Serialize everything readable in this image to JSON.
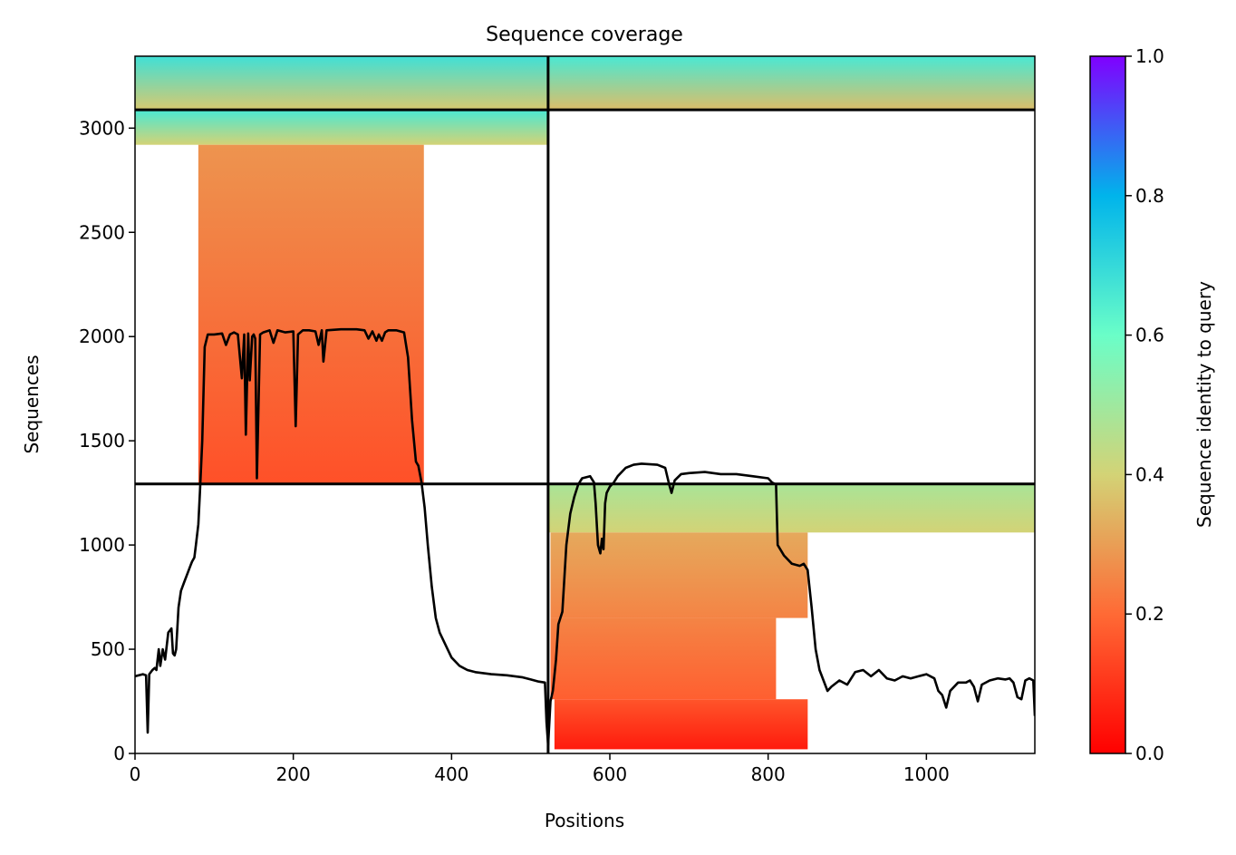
{
  "chart_data": {
    "type": "heatmap",
    "title": "Sequence coverage",
    "xlabel": "Positions",
    "ylabel": "Sequences",
    "xlim": [
      0,
      1137
    ],
    "ylim": [
      0,
      3345
    ],
    "xticks": [
      0,
      200,
      400,
      600,
      800,
      1000
    ],
    "yticks": [
      0,
      500,
      1000,
      1500,
      2000,
      2500,
      3000
    ],
    "colorbar": {
      "label": "Sequence identity to query",
      "range": [
        0,
        1
      ],
      "ticks": [
        "0.0",
        "0.2",
        "0.4",
        "0.6",
        "0.8",
        "1.0"
      ],
      "colormap": "rainbow_r",
      "stops": [
        "#ff0000",
        "#ff6a35",
        "#d3d376",
        "#6afec8",
        "#00b4eb",
        "#8000ff"
      ]
    },
    "chain_boundaries": {
      "x": [
        522
      ],
      "y": [
        1293,
        3088
      ]
    },
    "msa_blocks": [
      {
        "x_start": 0,
        "x_end": 522,
        "seq_start": 3088,
        "seq_end": 3345,
        "identity_top": 0.68,
        "identity_bottom": 0.38
      },
      {
        "x_start": 522,
        "x_end": 1137,
        "seq_start": 3088,
        "seq_end": 3345,
        "identity_top": 0.66,
        "identity_bottom": 0.36
      },
      {
        "x_start": 0,
        "x_end": 522,
        "seq_start": 2920,
        "seq_end": 3088,
        "identity_top": 0.66,
        "identity_bottom": 0.4
      },
      {
        "x_start": 80,
        "x_end": 365,
        "seq_start": 1293,
        "seq_end": 2920,
        "identity_top": 0.28,
        "identity_bottom": 0.15
      },
      {
        "x_start": 522,
        "x_end": 1137,
        "seq_start": 1060,
        "seq_end": 1293,
        "identity_top": 0.48,
        "identity_bottom": 0.4
      },
      {
        "x_start": 525,
        "x_end": 850,
        "seq_start": 650,
        "seq_end": 1060,
        "identity_top": 0.32,
        "identity_bottom": 0.25
      },
      {
        "x_start": 525,
        "x_end": 810,
        "seq_start": 260,
        "seq_end": 650,
        "identity_top": 0.25,
        "identity_bottom": 0.18
      },
      {
        "x_start": 530,
        "x_end": 850,
        "seq_start": 20,
        "seq_end": 260,
        "identity_top": 0.16,
        "identity_bottom": 0.05
      }
    ],
    "coverage_line": {
      "name": "",
      "color": "#000000",
      "points": [
        [
          0,
          370
        ],
        [
          10,
          380
        ],
        [
          14,
          375
        ],
        [
          16,
          100
        ],
        [
          18,
          380
        ],
        [
          22,
          400
        ],
        [
          25,
          410
        ],
        [
          27,
          400
        ],
        [
          30,
          500
        ],
        [
          32,
          420
        ],
        [
          35,
          500
        ],
        [
          38,
          450
        ],
        [
          42,
          580
        ],
        [
          46,
          600
        ],
        [
          48,
          480
        ],
        [
          50,
          470
        ],
        [
          52,
          500
        ],
        [
          55,
          700
        ],
        [
          58,
          780
        ],
        [
          62,
          820
        ],
        [
          66,
          860
        ],
        [
          70,
          900
        ],
        [
          72,
          920
        ],
        [
          75,
          940
        ],
        [
          77,
          1000
        ],
        [
          80,
          1100
        ],
        [
          82,
          1250
        ],
        [
          85,
          1500
        ],
        [
          88,
          1950
        ],
        [
          92,
          2010
        ],
        [
          100,
          2010
        ],
        [
          110,
          2015
        ],
        [
          115,
          1960
        ],
        [
          120,
          2010
        ],
        [
          125,
          2020
        ],
        [
          130,
          2010
        ],
        [
          135,
          1800
        ],
        [
          138,
          2010
        ],
        [
          140,
          1530
        ],
        [
          143,
          2015
        ],
        [
          145,
          1790
        ],
        [
          148,
          2000
        ],
        [
          150,
          2010
        ],
        [
          152,
          1990
        ],
        [
          154,
          1320
        ],
        [
          158,
          2010
        ],
        [
          162,
          2020
        ],
        [
          170,
          2030
        ],
        [
          175,
          1970
        ],
        [
          180,
          2030
        ],
        [
          190,
          2020
        ],
        [
          200,
          2025
        ],
        [
          203,
          1570
        ],
        [
          206,
          2010
        ],
        [
          212,
          2030
        ],
        [
          220,
          2030
        ],
        [
          228,
          2025
        ],
        [
          232,
          1960
        ],
        [
          236,
          2030
        ],
        [
          238,
          1880
        ],
        [
          242,
          2030
        ],
        [
          260,
          2035
        ],
        [
          280,
          2035
        ],
        [
          290,
          2030
        ],
        [
          295,
          1990
        ],
        [
          300,
          2025
        ],
        [
          305,
          1980
        ],
        [
          308,
          2010
        ],
        [
          312,
          1980
        ],
        [
          316,
          2020
        ],
        [
          320,
          2030
        ],
        [
          330,
          2030
        ],
        [
          340,
          2020
        ],
        [
          345,
          1900
        ],
        [
          350,
          1600
        ],
        [
          355,
          1400
        ],
        [
          358,
          1380
        ],
        [
          362,
          1300
        ],
        [
          366,
          1180
        ],
        [
          370,
          1000
        ],
        [
          375,
          800
        ],
        [
          380,
          650
        ],
        [
          385,
          580
        ],
        [
          390,
          540
        ],
        [
          400,
          460
        ],
        [
          410,
          420
        ],
        [
          420,
          400
        ],
        [
          430,
          390
        ],
        [
          450,
          380
        ],
        [
          470,
          375
        ],
        [
          490,
          365
        ],
        [
          500,
          355
        ],
        [
          510,
          345
        ],
        [
          518,
          340
        ],
        [
          520,
          150
        ],
        [
          522,
          40
        ],
        [
          525,
          250
        ],
        [
          528,
          300
        ],
        [
          532,
          450
        ],
        [
          535,
          620
        ],
        [
          540,
          680
        ],
        [
          545,
          1000
        ],
        [
          550,
          1150
        ],
        [
          555,
          1230
        ],
        [
          560,
          1290
        ],
        [
          565,
          1320
        ],
        [
          575,
          1330
        ],
        [
          580,
          1300
        ],
        [
          582,
          1200
        ],
        [
          585,
          1000
        ],
        [
          588,
          960
        ],
        [
          590,
          1030
        ],
        [
          592,
          980
        ],
        [
          594,
          1200
        ],
        [
          596,
          1250
        ],
        [
          600,
          1280
        ],
        [
          605,
          1300
        ],
        [
          610,
          1330
        ],
        [
          620,
          1370
        ],
        [
          630,
          1385
        ],
        [
          640,
          1390
        ],
        [
          660,
          1385
        ],
        [
          670,
          1370
        ],
        [
          675,
          1290
        ],
        [
          678,
          1250
        ],
        [
          682,
          1310
        ],
        [
          690,
          1340
        ],
        [
          700,
          1345
        ],
        [
          720,
          1350
        ],
        [
          740,
          1340
        ],
        [
          760,
          1340
        ],
        [
          780,
          1330
        ],
        [
          800,
          1320
        ],
        [
          805,
          1300
        ],
        [
          810,
          1290
        ],
        [
          812,
          1000
        ],
        [
          820,
          950
        ],
        [
          830,
          910
        ],
        [
          840,
          900
        ],
        [
          845,
          910
        ],
        [
          850,
          880
        ],
        [
          855,
          700
        ],
        [
          860,
          500
        ],
        [
          865,
          400
        ],
        [
          870,
          350
        ],
        [
          875,
          300
        ],
        [
          880,
          320
        ],
        [
          890,
          350
        ],
        [
          900,
          330
        ],
        [
          910,
          390
        ],
        [
          920,
          400
        ],
        [
          930,
          370
        ],
        [
          940,
          400
        ],
        [
          950,
          360
        ],
        [
          960,
          350
        ],
        [
          970,
          370
        ],
        [
          980,
          360
        ],
        [
          990,
          370
        ],
        [
          1000,
          380
        ],
        [
          1010,
          360
        ],
        [
          1015,
          300
        ],
        [
          1020,
          280
        ],
        [
          1025,
          220
        ],
        [
          1030,
          300
        ],
        [
          1040,
          340
        ],
        [
          1050,
          340
        ],
        [
          1055,
          350
        ],
        [
          1060,
          320
        ],
        [
          1065,
          250
        ],
        [
          1070,
          330
        ],
        [
          1080,
          350
        ],
        [
          1090,
          360
        ],
        [
          1100,
          355
        ],
        [
          1105,
          360
        ],
        [
          1110,
          340
        ],
        [
          1115,
          270
        ],
        [
          1120,
          260
        ],
        [
          1125,
          350
        ],
        [
          1130,
          360
        ],
        [
          1135,
          350
        ],
        [
          1137,
          180
        ]
      ]
    }
  }
}
